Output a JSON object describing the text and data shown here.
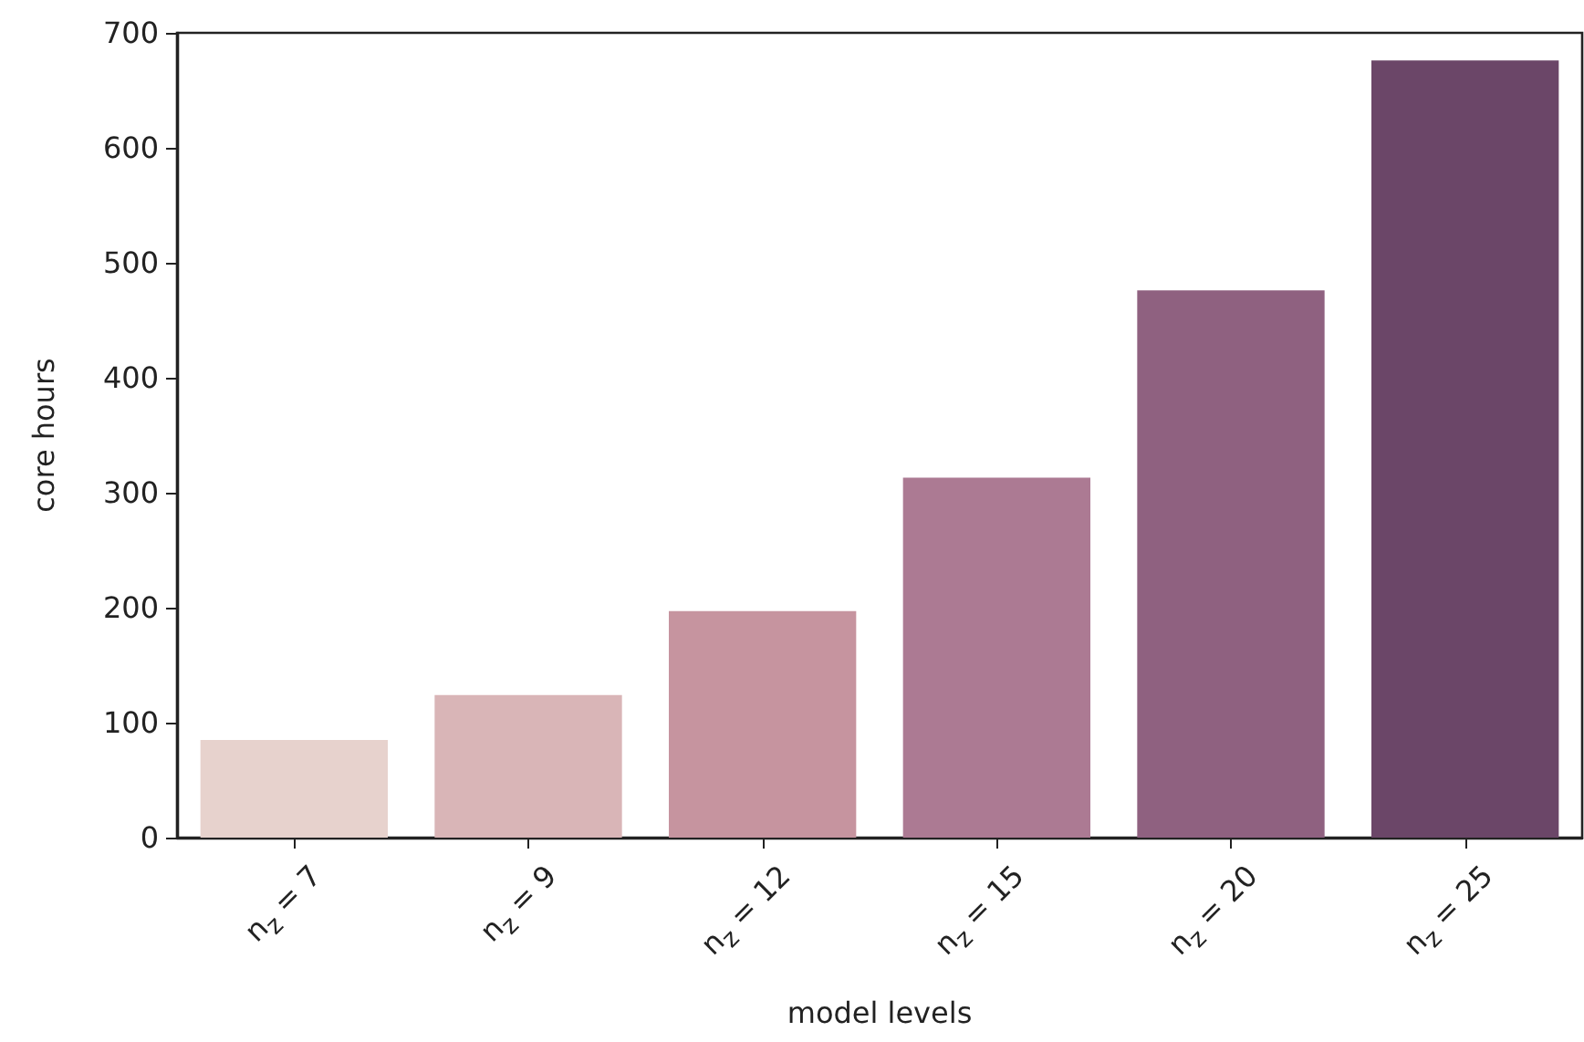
{
  "chart_data": {
    "type": "bar",
    "xlabel": "model levels",
    "ylabel": "core hours",
    "categories": [
      "n$_{z}$ = 7",
      "n$_{z}$ = 9",
      "n$_{z}$ = 12",
      "n$_{z}$ = 15",
      "n$_{z}$ = 20",
      "n$_{z}$ = 25"
    ],
    "values": [
      85,
      124,
      197,
      313,
      476,
      676
    ],
    "colors": [
      "#e7d2cd",
      "#d9b5b7",
      "#c6949f",
      "#ac7a93",
      "#8f6180",
      "#6b4668"
    ],
    "ylim": [
      0,
      700
    ],
    "yticks": [
      0,
      100,
      200,
      300,
      400,
      500,
      600,
      700
    ],
    "grid": false
  }
}
